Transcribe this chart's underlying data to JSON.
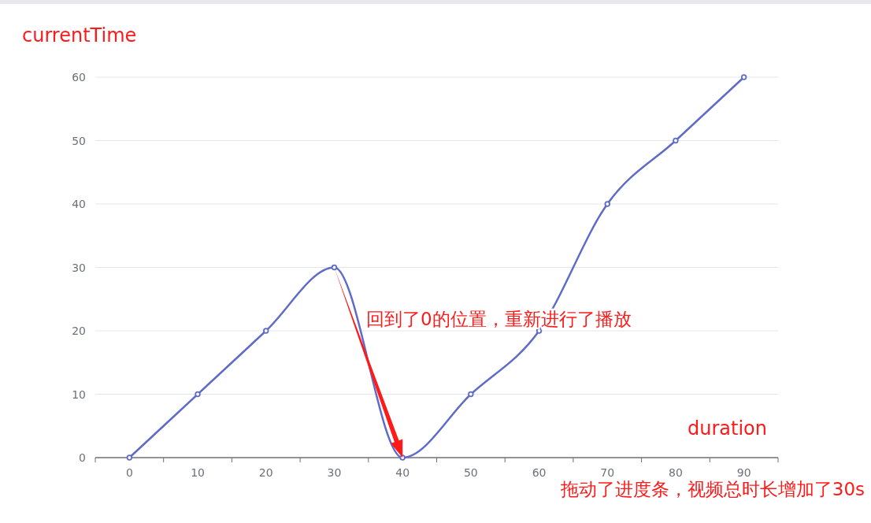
{
  "chart_data": {
    "type": "line",
    "xlabel": "duration",
    "ylabel": "currentTime",
    "categories": [
      "0",
      "10",
      "20",
      "30",
      "40",
      "50",
      "60",
      "70",
      "80",
      "90"
    ],
    "series": [
      {
        "color": "#5f6bc8",
        "values": [
          0,
          10,
          20,
          30,
          0,
          10,
          20,
          40,
          50,
          60
        ]
      }
    ],
    "ylim": [
      0,
      60
    ],
    "yticks": [
      0,
      10,
      20,
      30,
      40,
      50,
      60
    ],
    "grid": "y",
    "marker": "circle",
    "line_style": "solid",
    "annotations": [
      "回到了0的位置，重新进行了播放",
      "拖动了进度条，视频总时长增加了30s"
    ]
  }
}
